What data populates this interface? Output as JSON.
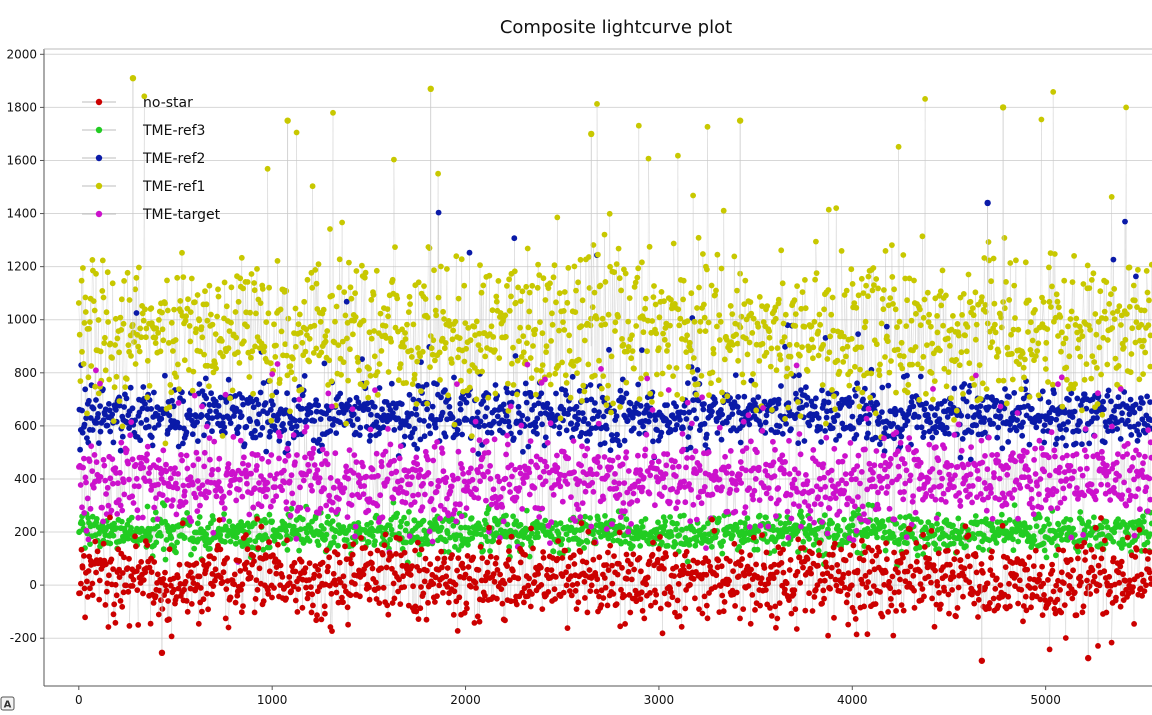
{
  "chart_data": {
    "type": "scatter",
    "title": "Composite lightcurve plot",
    "xlabel": "",
    "ylabel": "",
    "xlim": [
      -180,
      5550
    ],
    "ylim": [
      -380,
      2020
    ],
    "x_ticks": [
      0,
      1000,
      2000,
      3000,
      4000,
      5000
    ],
    "y_ticks": [
      -200,
      0,
      200,
      400,
      600,
      800,
      1000,
      1200,
      1400,
      1600,
      1800,
      2000
    ],
    "grid": true,
    "legend_position": "top-left",
    "series": [
      {
        "name": "no-star",
        "color": "#cc0000",
        "point_count": 5500,
        "center": 20,
        "spread": 78,
        "spike_up": 170,
        "spike_down": 285
      },
      {
        "name": "TME-ref3",
        "color": "#22cc22",
        "point_count": 5500,
        "center": 200,
        "spread": 35,
        "spike_up": 110,
        "spike_down": 70
      },
      {
        "name": "TME-ref2",
        "color": "#0a1aa8",
        "point_count": 5500,
        "center": 640,
        "spread": 55,
        "spike_up": 1450,
        "spike_down": 500
      },
      {
        "name": "TME-ref1",
        "color": "#c8c800",
        "point_count": 5500,
        "center": 950,
        "spread": 135,
        "spike_up": 1910,
        "spike_down": 540
      },
      {
        "name": "TME-target",
        "color": "#cc11cc",
        "point_count": 5500,
        "center": 395,
        "spread": 80,
        "spike_up": 880,
        "spike_down": 80
      }
    ],
    "notable_points": [
      {
        "series": "TME-ref1",
        "x": 280,
        "y": 1910
      },
      {
        "series": "TME-ref1",
        "x": 1820,
        "y": 1870
      },
      {
        "series": "TME-ref1",
        "x": 4780,
        "y": 1800
      },
      {
        "series": "TME-ref1",
        "x": 3420,
        "y": 1750
      },
      {
        "series": "TME-ref1",
        "x": 1080,
        "y": 1750
      },
      {
        "series": "TME-ref1",
        "x": 2650,
        "y": 1700
      },
      {
        "series": "TME-ref2",
        "x": 4700,
        "y": 1440
      },
      {
        "series": "no-star",
        "x": 4670,
        "y": -285
      },
      {
        "series": "no-star",
        "x": 5220,
        "y": -275
      },
      {
        "series": "no-star",
        "x": 430,
        "y": -255
      }
    ]
  },
  "corner_badge": {
    "label": "A"
  }
}
